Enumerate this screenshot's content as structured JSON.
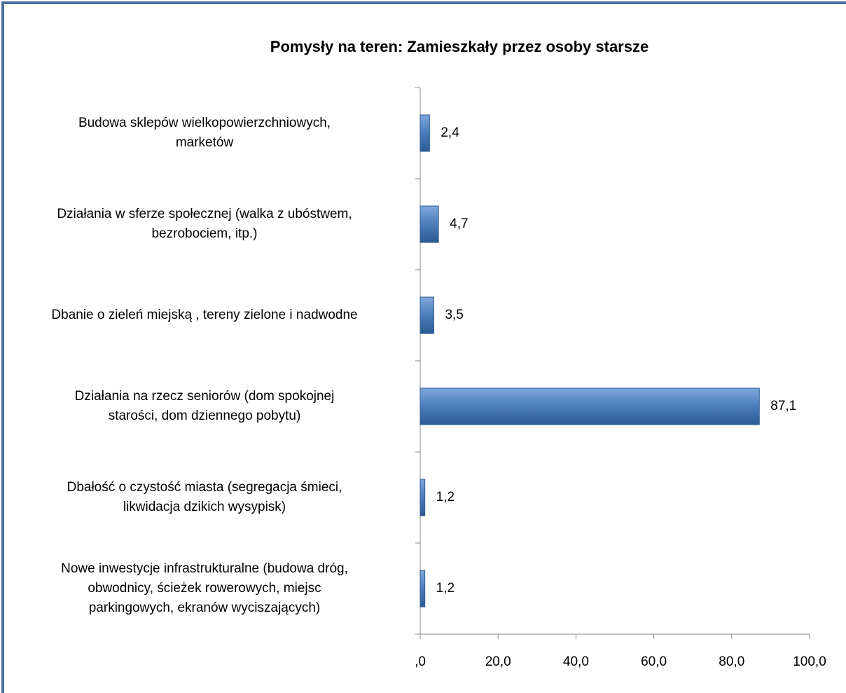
{
  "chart_data": {
    "type": "bar",
    "orientation": "horizontal",
    "title": "Pomysły na teren: Zamieszkały przez osoby starsze",
    "categories": [
      "Budowa sklepów wielkopowierzchniowych,\nmarketów",
      "Działania w sferze społecznej (walka z ubóstwem,\nbezrobociem, itp.)",
      "Dbanie o zieleń miejską , tereny zielone i nadwodne",
      "Działania na rzecz seniorów (dom spokojnej\nstarości, dom dziennego pobytu)",
      "Dbałość o czystość miasta (segregacja śmieci,\nlikwidacja dzikich wysypisk)",
      "Nowe inwestycje infrastrukturalne (budowa dróg,\nobwodnicy, ścieżek rowerowych, miejsc\nparkingowych, ekranów wyciszających)"
    ],
    "values": [
      2.4,
      4.7,
      3.5,
      87.1,
      1.2,
      1.2
    ],
    "value_labels": [
      "2,4",
      "4,7",
      "3,5",
      "87,1",
      "1,2",
      "1,2"
    ],
    "color": "#4f81bd",
    "xlim": [
      0,
      100
    ],
    "xticks": [
      {
        "value": 0,
        "label": ",0"
      },
      {
        "value": 20,
        "label": "20,0"
      },
      {
        "value": 40,
        "label": "40,0"
      },
      {
        "value": 60,
        "label": "60,0"
      },
      {
        "value": 80,
        "label": "80,0"
      },
      {
        "value": 100,
        "label": "100,0"
      }
    ]
  }
}
